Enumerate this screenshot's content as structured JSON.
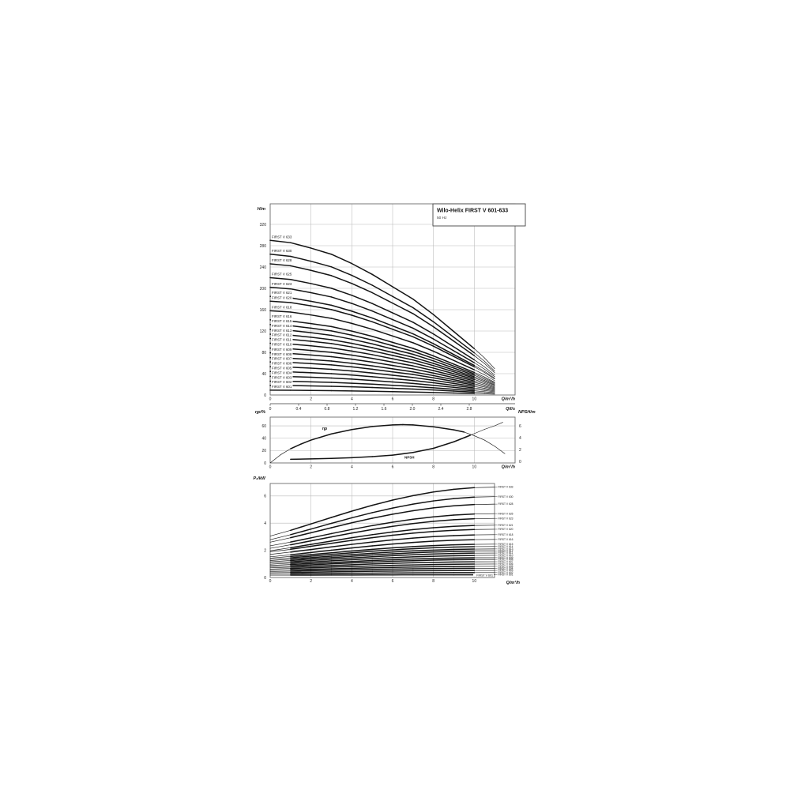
{
  "page": {
    "background": "#ffffff"
  },
  "colors": {
    "curve": "#141414",
    "grid": "#b9b9b9",
    "frame": "#6b6b6b",
    "label_bg": "#ffffff"
  },
  "chart_data": [
    {
      "id": "head_flow",
      "type": "line",
      "title": "Wilo-Helix FIRST V 601-633",
      "subtitle": "50 Hz",
      "ylabel": "H/m",
      "xlabel": "Q/m³/h",
      "xlabel2": "Q/l/s",
      "y_ticks": [
        0,
        40,
        80,
        120,
        160,
        200,
        240,
        280,
        320
      ],
      "x_ticks": [
        0,
        2,
        4,
        6,
        8,
        10
      ],
      "x2_ticks": [
        "0",
        "0.4",
        "0.8",
        "1.2",
        "1.6",
        "2.0",
        "2.4",
        "2.8"
      ],
      "xlim": [
        0,
        12
      ],
      "ylim": [
        0,
        358
      ],
      "qmax_m3h": 11,
      "q_relative": [
        [
          0,
          1
        ],
        [
          1,
          0.985
        ],
        [
          2,
          0.95
        ],
        [
          3,
          0.91
        ],
        [
          4,
          0.85
        ],
        [
          5,
          0.78
        ],
        [
          6,
          0.7
        ],
        [
          7,
          0.62
        ],
        [
          8,
          0.52
        ],
        [
          9,
          0.41
        ],
        [
          10,
          0.3
        ],
        [
          10.5,
          0.24
        ],
        [
          11,
          0.17
        ]
      ],
      "series": [
        {
          "name": "FIRST V 633",
          "shutoff_head_m": 290
        },
        {
          "name": "FIRST V 630",
          "shutoff_head_m": 264
        },
        {
          "name": "FIRST V 628",
          "shutoff_head_m": 246
        },
        {
          "name": "FIRST V 625",
          "shutoff_head_m": 220
        },
        {
          "name": "FIRST V 623",
          "shutoff_head_m": 202
        },
        {
          "name": "FIRST V 621",
          "shutoff_head_m": 185
        },
        {
          "name": "FIRST V 620",
          "shutoff_head_m": 176
        },
        {
          "name": "FIRST V 618",
          "shutoff_head_m": 158
        },
        {
          "name": "FIRST V 616",
          "shutoff_head_m": 141
        },
        {
          "name": "FIRST V 615",
          "shutoff_head_m": 132
        },
        {
          "name": "FIRST V 614",
          "shutoff_head_m": 123
        },
        {
          "name": "FIRST V 613",
          "shutoff_head_m": 114
        },
        {
          "name": "FIRST V 612",
          "shutoff_head_m": 106
        },
        {
          "name": "FIRST V 611",
          "shutoff_head_m": 97
        },
        {
          "name": "FIRST V 610",
          "shutoff_head_m": 88
        },
        {
          "name": "FIRST V 609",
          "shutoff_head_m": 79
        },
        {
          "name": "FIRST V 608",
          "shutoff_head_m": 70
        },
        {
          "name": "FIRST V 607",
          "shutoff_head_m": 62
        },
        {
          "name": "FIRST V 606",
          "shutoff_head_m": 53
        },
        {
          "name": "FIRST V 605",
          "shutoff_head_m": 44
        },
        {
          "name": "FIRST V 604",
          "shutoff_head_m": 35
        },
        {
          "name": "FIRST V 603",
          "shutoff_head_m": 26
        },
        {
          "name": "FIRST V 602",
          "shutoff_head_m": 18
        },
        {
          "name": "FIRST V 601",
          "shutoff_head_m": 9
        }
      ]
    },
    {
      "id": "efficiency_npsh",
      "type": "line",
      "ylabel_left": "ηp/%",
      "ylabel_right": "NPSH/m",
      "xlabel": "Q/m³/h",
      "y_ticks_left": [
        0,
        20,
        40,
        60
      ],
      "y_ticks_right": [
        0,
        2,
        4,
        6
      ],
      "x_ticks": [
        0,
        2,
        4,
        6,
        8,
        10
      ],
      "series": [
        {
          "name": "ηp",
          "axis": "left",
          "points": [
            [
              0,
              0
            ],
            [
              0.5,
              13
            ],
            [
              1,
              23
            ],
            [
              1.5,
              30.5
            ],
            [
              2,
              37
            ],
            [
              3,
              47
            ],
            [
              4,
              54
            ],
            [
              5,
              59
            ],
            [
              6,
              61.5
            ],
            [
              6.5,
              62
            ],
            [
              7,
              61.5
            ],
            [
              8,
              58.5
            ],
            [
              9,
              53.5
            ],
            [
              9.5,
              50
            ],
            [
              10,
              44
            ],
            [
              10.5,
              37
            ],
            [
              11,
              27
            ],
            [
              11.5,
              15
            ]
          ]
        },
        {
          "name": "NPSH",
          "axis": "right",
          "points": [
            [
              1,
              0.35
            ],
            [
              2,
              0.42
            ],
            [
              3,
              0.5
            ],
            [
              4,
              0.62
            ],
            [
              5,
              0.8
            ],
            [
              6,
              1.05
            ],
            [
              7,
              1.5
            ],
            [
              8,
              2.2
            ],
            [
              9,
              3.3
            ],
            [
              9.8,
              4.4
            ],
            [
              10.5,
              5.4
            ],
            [
              11,
              6.0
            ],
            [
              11.4,
              6.6
            ]
          ]
        }
      ]
    },
    {
      "id": "power",
      "type": "line",
      "ylabel": "P₂/kW",
      "xlabel": "Q/m³/h",
      "y_ticks": [
        0,
        2,
        4,
        6
      ],
      "x_ticks": [
        0,
        2,
        4,
        6,
        8,
        10
      ],
      "inner_label": "FIRST V 601",
      "power_profile": [
        [
          0,
          0
        ],
        [
          1,
          0.117
        ],
        [
          2,
          0.248
        ],
        [
          3,
          0.38
        ],
        [
          4,
          0.509
        ],
        [
          5,
          0.628
        ],
        [
          6,
          0.735
        ],
        [
          7,
          0.827
        ],
        [
          8,
          0.901
        ],
        [
          9,
          0.955
        ],
        [
          10,
          0.989
        ],
        [
          11,
          1.0
        ]
      ],
      "series": [
        {
          "name": "FIRST V 633",
          "p2_kw_at_q0": 3.05,
          "p2_kw_at_q11": 6.65
        },
        {
          "name": "FIRST V 630",
          "p2_kw_at_q0": 2.78,
          "p2_kw_at_q11": 5.95
        },
        {
          "name": "FIRST V 628",
          "p2_kw_at_q0": 2.6,
          "p2_kw_at_q11": 5.4
        },
        {
          "name": "FIRST V 625",
          "p2_kw_at_q0": 2.33,
          "p2_kw_at_q11": 4.7
        },
        {
          "name": "FIRST V 623",
          "p2_kw_at_q0": 2.15,
          "p2_kw_at_q11": 4.35
        },
        {
          "name": "FIRST V 621",
          "p2_kw_at_q0": 1.97,
          "p2_kw_at_q11": 3.85
        },
        {
          "name": "FIRST V 620",
          "p2_kw_at_q0": 1.88,
          "p2_kw_at_q11": 3.55
        },
        {
          "name": "FIRST V 618",
          "p2_kw_at_q0": 1.7,
          "p2_kw_at_q11": 3.15
        },
        {
          "name": "FIRST V 616",
          "p2_kw_at_q0": 1.52,
          "p2_kw_at_q11": 2.8
        },
        {
          "name": "FIRST V 615",
          "p2_kw_at_q0": 1.43,
          "p2_kw_at_q11": 2.45
        },
        {
          "name": "FIRST V 614",
          "p2_kw_at_q0": 1.34,
          "p2_kw_at_q11": 2.28
        },
        {
          "name": "FIRST V 613",
          "p2_kw_at_q0": 1.25,
          "p2_kw_at_q11": 2.1
        },
        {
          "name": "FIRST V 612",
          "p2_kw_at_q0": 1.16,
          "p2_kw_at_q11": 1.95
        },
        {
          "name": "FIRST V 611",
          "p2_kw_at_q0": 1.07,
          "p2_kw_at_q11": 1.8
        },
        {
          "name": "FIRST V 610",
          "p2_kw_at_q0": 0.98,
          "p2_kw_at_q11": 1.63
        },
        {
          "name": "FIRST V 609",
          "p2_kw_at_q0": 0.89,
          "p2_kw_at_q11": 1.46
        },
        {
          "name": "FIRST V 608",
          "p2_kw_at_q0": 0.8,
          "p2_kw_at_q11": 1.33
        },
        {
          "name": "FIRST V 607",
          "p2_kw_at_q0": 0.71,
          "p2_kw_at_q11": 1.16
        },
        {
          "name": "FIRST V 606",
          "p2_kw_at_q0": 0.62,
          "p2_kw_at_q11": 0.99
        },
        {
          "name": "FIRST V 605",
          "p2_kw_at_q0": 0.53,
          "p2_kw_at_q11": 0.82
        },
        {
          "name": "FIRST V 604",
          "p2_kw_at_q0": 0.44,
          "p2_kw_at_q11": 0.68
        },
        {
          "name": "FIRST V 603",
          "p2_kw_at_q0": 0.35,
          "p2_kw_at_q11": 0.52
        },
        {
          "name": "FIRST V 602",
          "p2_kw_at_q0": 0.26,
          "p2_kw_at_q11": 0.36
        },
        {
          "name": "FIRST V 601",
          "p2_kw_at_q0": 0.17,
          "p2_kw_at_q11": 0.2
        }
      ]
    }
  ]
}
